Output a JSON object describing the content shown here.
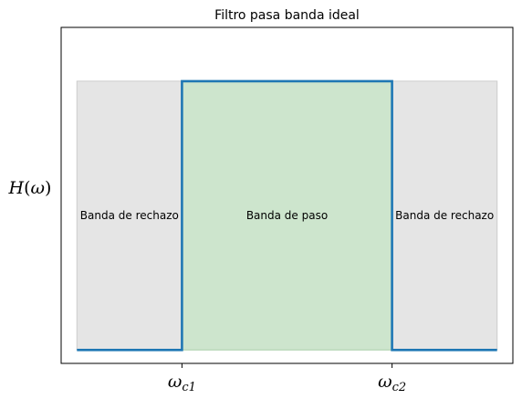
{
  "chart_data": {
    "type": "line",
    "title": "Filtro pasa banda ideal",
    "ylabel": {
      "main": "H",
      "arg": "ω"
    },
    "xticks": [
      {
        "value": 1,
        "main": "ω",
        "sub": "c1"
      },
      {
        "value": 3,
        "main": "ω",
        "sub": "c2"
      }
    ],
    "x": [
      0,
      1,
      1,
      3,
      3,
      4
    ],
    "y": [
      0,
      0,
      1,
      1,
      0,
      0
    ],
    "xlim": [
      -0.15,
      4.15
    ],
    "ylim": [
      -0.05,
      1.2
    ],
    "regions": [
      {
        "label": "Banda de rechazo",
        "from": 0,
        "to": 1,
        "color": "#e5e5e5",
        "edge": "#cccccc"
      },
      {
        "label": "Banda de paso",
        "from": 1,
        "to": 3,
        "color": "#cde5cd",
        "edge": "#a9cfa9"
      },
      {
        "label": "Banda de rechazo",
        "from": 3,
        "to": 4,
        "color": "#e5e5e5",
        "edge": "#cccccc"
      }
    ],
    "region_top": 1,
    "line_color": "#1f77b4",
    "grid": false,
    "legend": "none"
  }
}
